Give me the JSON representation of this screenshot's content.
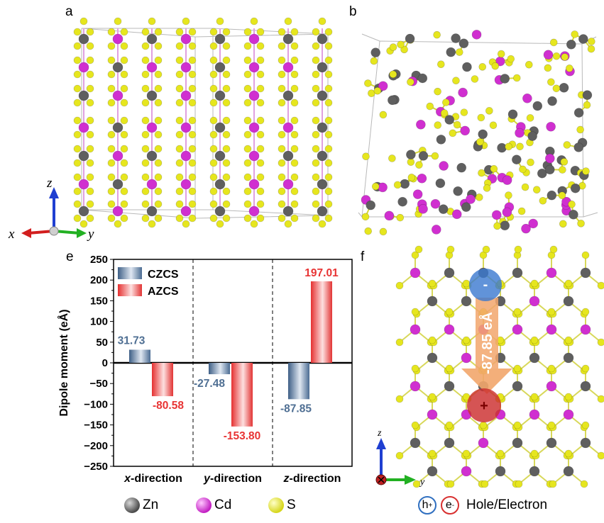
{
  "panels": {
    "a": "a",
    "b": "b",
    "e": "e",
    "f": "f"
  },
  "axes_a": {
    "x": "x",
    "y": "y",
    "z": "z"
  },
  "axes_f": {
    "y": "y",
    "z": "z"
  },
  "legend": {
    "zn": "Zn",
    "cd": "Cd",
    "s": "S",
    "h": "h",
    "h_sup": "+",
    "e": "e",
    "e_sup": "-",
    "hole_electron": "Hole/Electron"
  },
  "panel_f": {
    "dipole_label": "-87.85 eÅ",
    "minus": "-",
    "plus": "+"
  },
  "colors": {
    "zn": "#5f5f5f",
    "cd": "#d02fd0",
    "s": "#e6e61e",
    "czcs": "#4f6f93",
    "azcs": "#e83434",
    "hole": "#2f6fc0",
    "electron": "#d83030",
    "arrow": "#f2a66c"
  },
  "chart_data": {
    "type": "bar",
    "categories": [
      "x-direction",
      "y-direction",
      "z-direction"
    ],
    "series": [
      {
        "name": "CZCS",
        "values": [
          31.73,
          -27.48,
          -87.85
        ],
        "labels": [
          "31.73",
          "-27.48",
          "-87.85"
        ]
      },
      {
        "name": "AZCS",
        "values": [
          -80.58,
          -153.8,
          197.01
        ],
        "labels": [
          "-80.58",
          "-153.80",
          "197.01"
        ]
      }
    ],
    "ylabel": "Dipole moment (eÅ)",
    "ylim": [
      -250,
      250
    ],
    "yticks": [
      250,
      200,
      150,
      100,
      50,
      0,
      -50,
      -100,
      -150,
      -200,
      -250
    ],
    "ytick_labels": [
      "250",
      "200",
      "150",
      "100",
      "50",
      "0",
      "−50",
      "−100",
      "−150",
      "−200",
      "−250"
    ],
    "legend_position": "top-left"
  }
}
